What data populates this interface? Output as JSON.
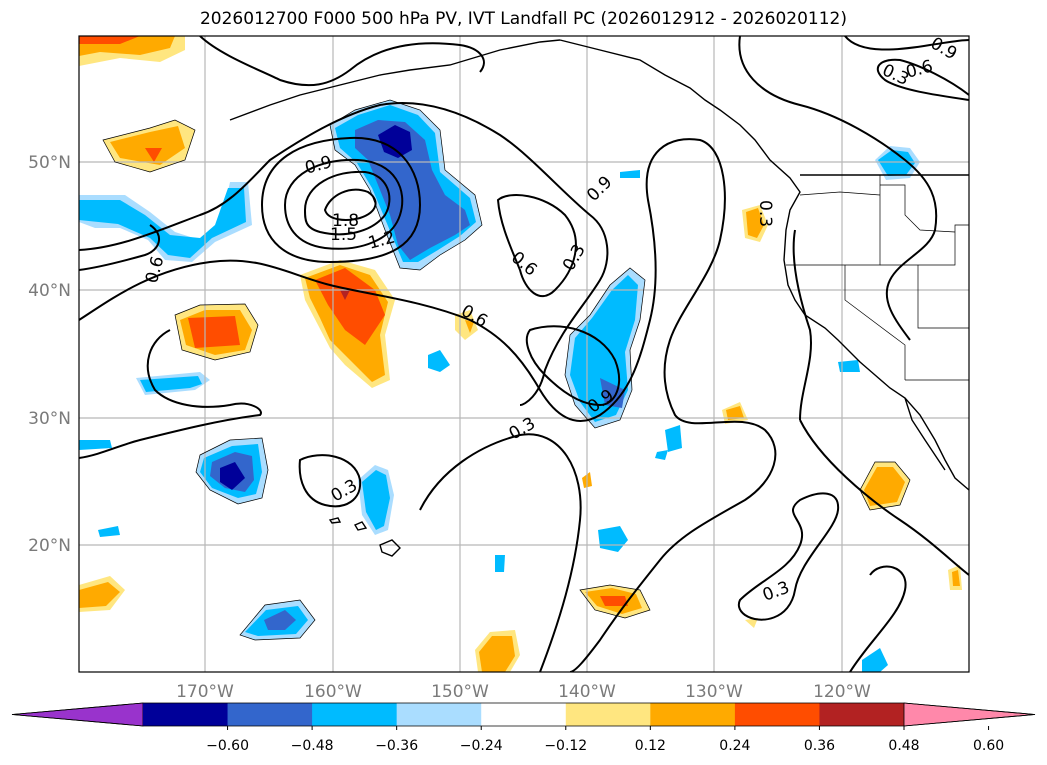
{
  "title": "2026012700 F000 500 hPa PV, IVT Landfall PC (2026012912 - 2026020112)",
  "lon_ticks": [
    "170°W",
    "160°W",
    "150°W",
    "140°W",
    "130°W",
    "120°W"
  ],
  "lat_ticks": [
    "50°N",
    "40°N",
    "30°N",
    "20°N"
  ],
  "colorbar": {
    "colors": [
      "#9933cc",
      "#000099",
      "#3366cc",
      "#00bbff",
      "#aaddff",
      "#ffffff",
      "#ffe680",
      "#ffaa00",
      "#ff4d00",
      "#b22222",
      "#ff88aa"
    ],
    "labels": [
      "−0.60",
      "−0.48",
      "−0.36",
      "−0.24",
      "−0.12",
      "0.12",
      "0.24",
      "0.36",
      "0.48",
      "0.60"
    ]
  },
  "contour_labels": [
    "0.9",
    "1.8",
    "1.5",
    "1.2",
    "0.9",
    "0.6",
    "0.3",
    "0.6",
    "0.6",
    "0.9",
    "0.3",
    "0.3",
    "0.3",
    "0.6",
    "0.3",
    "0.9",
    "0.3"
  ]
}
